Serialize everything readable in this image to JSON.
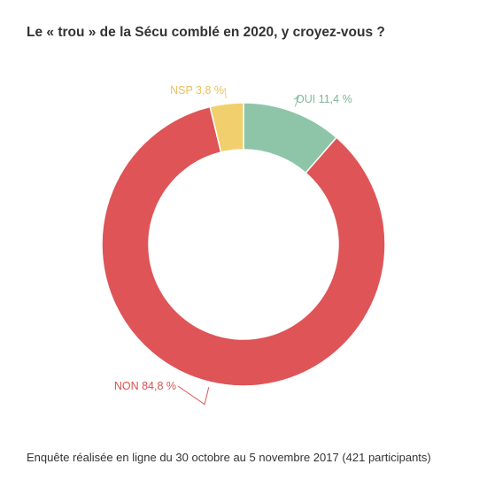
{
  "chart_data": {
    "type": "pie",
    "variant": "donut",
    "title": "Le « trou » de la Sécu comblé en 2020, y croyez-vous ?",
    "footnote": "Enquête réalisée en ligne du 30 octobre au 5 novembre 2017 (421 participants)",
    "slices": [
      {
        "label": "OUI",
        "value": 11.4,
        "display": "OUI 11,4 %",
        "color": "#8ec5a8",
        "text_color": "#7fb89b"
      },
      {
        "label": "NON",
        "value": 84.8,
        "display": "NON 84,8 %",
        "color": "#de5457",
        "text_color": "#d9524f"
      },
      {
        "label": "NSP",
        "value": 3.8,
        "display": "NSP 3,8 %",
        "color": "#f1cf6c",
        "text_color": "#e8c15a"
      }
    ]
  }
}
